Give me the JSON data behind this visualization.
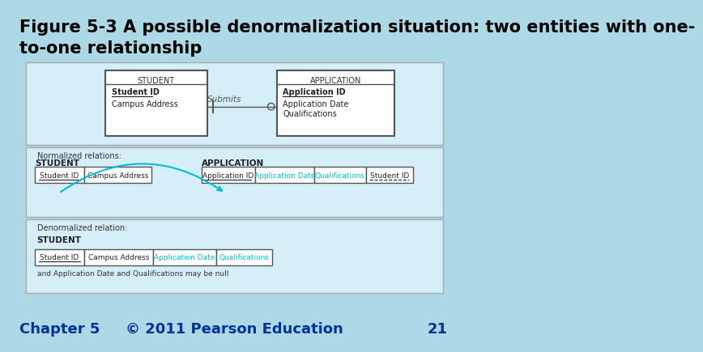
{
  "bg_color": "#add8e6",
  "title": "Figure 5-3 A possible denormalization situation: two entities with one-\nto-one relationship",
  "title_fontsize": 15,
  "title_color": "#000000",
  "main_panel_bg": "#d6eef8",
  "white_box": "#ffffff",
  "cyan_text": "#00bcd4",
  "footer_text_left": "Chapter 5",
  "footer_text_center": "© 2011 Pearson Education",
  "footer_page": "21",
  "er_student_title": "STUDENT",
  "er_student_fields": [
    "Student ID",
    "Campus Address"
  ],
  "er_app_title": "APPLICATION",
  "er_app_fields": [
    "Application ID",
    "Application Date",
    "Qualifications"
  ],
  "er_relationship": "Submits",
  "norm_label": "Normalized relations:",
  "norm_student_title": "STUDENT",
  "norm_student_fields": [
    "Student ID",
    "Campus Address"
  ],
  "norm_app_title": "APPLICATION",
  "norm_app_fields": [
    "Application ID",
    "Application Date",
    "Qualifications",
    "Student ID"
  ],
  "denorm_label": "Denormalized relation:",
  "denorm_student_title": "STUDENT",
  "denorm_fields": [
    "Student ID",
    "Campus Address",
    "Application Date",
    "Qualifications"
  ],
  "denorm_note": "and Application Date and Qualifications may be null"
}
